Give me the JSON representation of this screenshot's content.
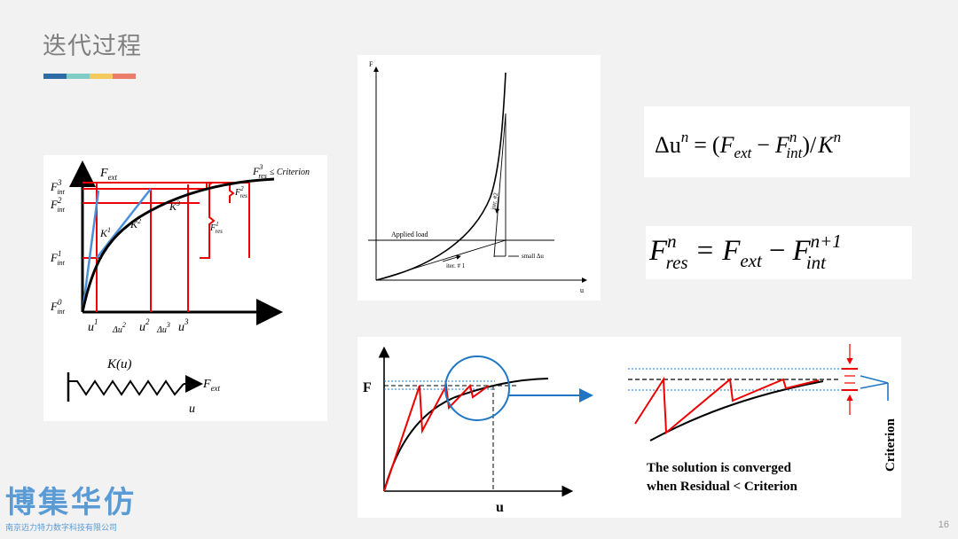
{
  "title": "迭代过程",
  "title_bar_colors": [
    "#2e6ca6",
    "#7fcdc4",
    "#f4c95d",
    "#ed7d6b"
  ],
  "diagram_left": {
    "f_ext": "F",
    "f_ext_sub": "ext",
    "f_int3": "F",
    "f_int3_sub": "int",
    "f_int3_sup": "3",
    "f_int2": "F",
    "f_int2_sub": "int",
    "f_int2_sup": "2",
    "f_int1": "F",
    "f_int1_sub": "int",
    "f_int1_sup": "1",
    "f_int0": "F",
    "f_int0_sub": "int",
    "f_int0_sup": "0",
    "f_res3": "F",
    "f_res3_sub": "res",
    "f_res3_sup": "3",
    "criterion": "≤ Criterion",
    "f_res2": "F",
    "f_res2_sub": "res",
    "f_res2_sup": "2",
    "f_res1": "F",
    "f_res1_sub": "res",
    "f_res1_sup": "1",
    "k1": "K",
    "k1_sup": "1",
    "k2": "K",
    "k2_sup": "2",
    "k3": "K",
    "k3_sup": "3",
    "u1": "u",
    "u1_sup": "1",
    "du2": "Δu",
    "du2_sup": "2",
    "u2": "u",
    "u2_sup": "2",
    "du3": "Δu",
    "du3_sup": "3",
    "u3": "u",
    "u3_sup": "3",
    "spring_k": "K(u)",
    "spring_f": "F",
    "spring_f_sub": "ext",
    "spring_u": "u"
  },
  "diagram_middle": {
    "f_label": "F",
    "u_label": "u",
    "applied_load": "Applied load",
    "iter1": "iter. # 1",
    "iter2": "iter. #2",
    "small_du": "small Δu"
  },
  "formula1": {
    "lhs": "Δu",
    "lhs_sup": "n",
    "eq": "=",
    "fext": "F",
    "fext_sub": "ext",
    "minus": "−",
    "fint": "F",
    "fint_sub": "int",
    "fint_sup": "n",
    "k": "K",
    "k_sup": "n"
  },
  "formula2": {
    "fres": "F",
    "fres_sub": "res",
    "fres_sup": "n",
    "eq": "=",
    "fext": "F",
    "fext_sub": "ext",
    "minus": "−",
    "fint": "F",
    "fint_sub": "int",
    "fint_sup": "n+1"
  },
  "diagram_bottom": {
    "f_label": "F",
    "u_label": "u",
    "criterion": "Criterion",
    "note_line1": "The solution is converged",
    "note_line2": "when Residual < Criterion"
  },
  "logo": {
    "main": "博集华仿",
    "sub": "南京迈力特力数字科技有限公司"
  },
  "page_number": "16"
}
